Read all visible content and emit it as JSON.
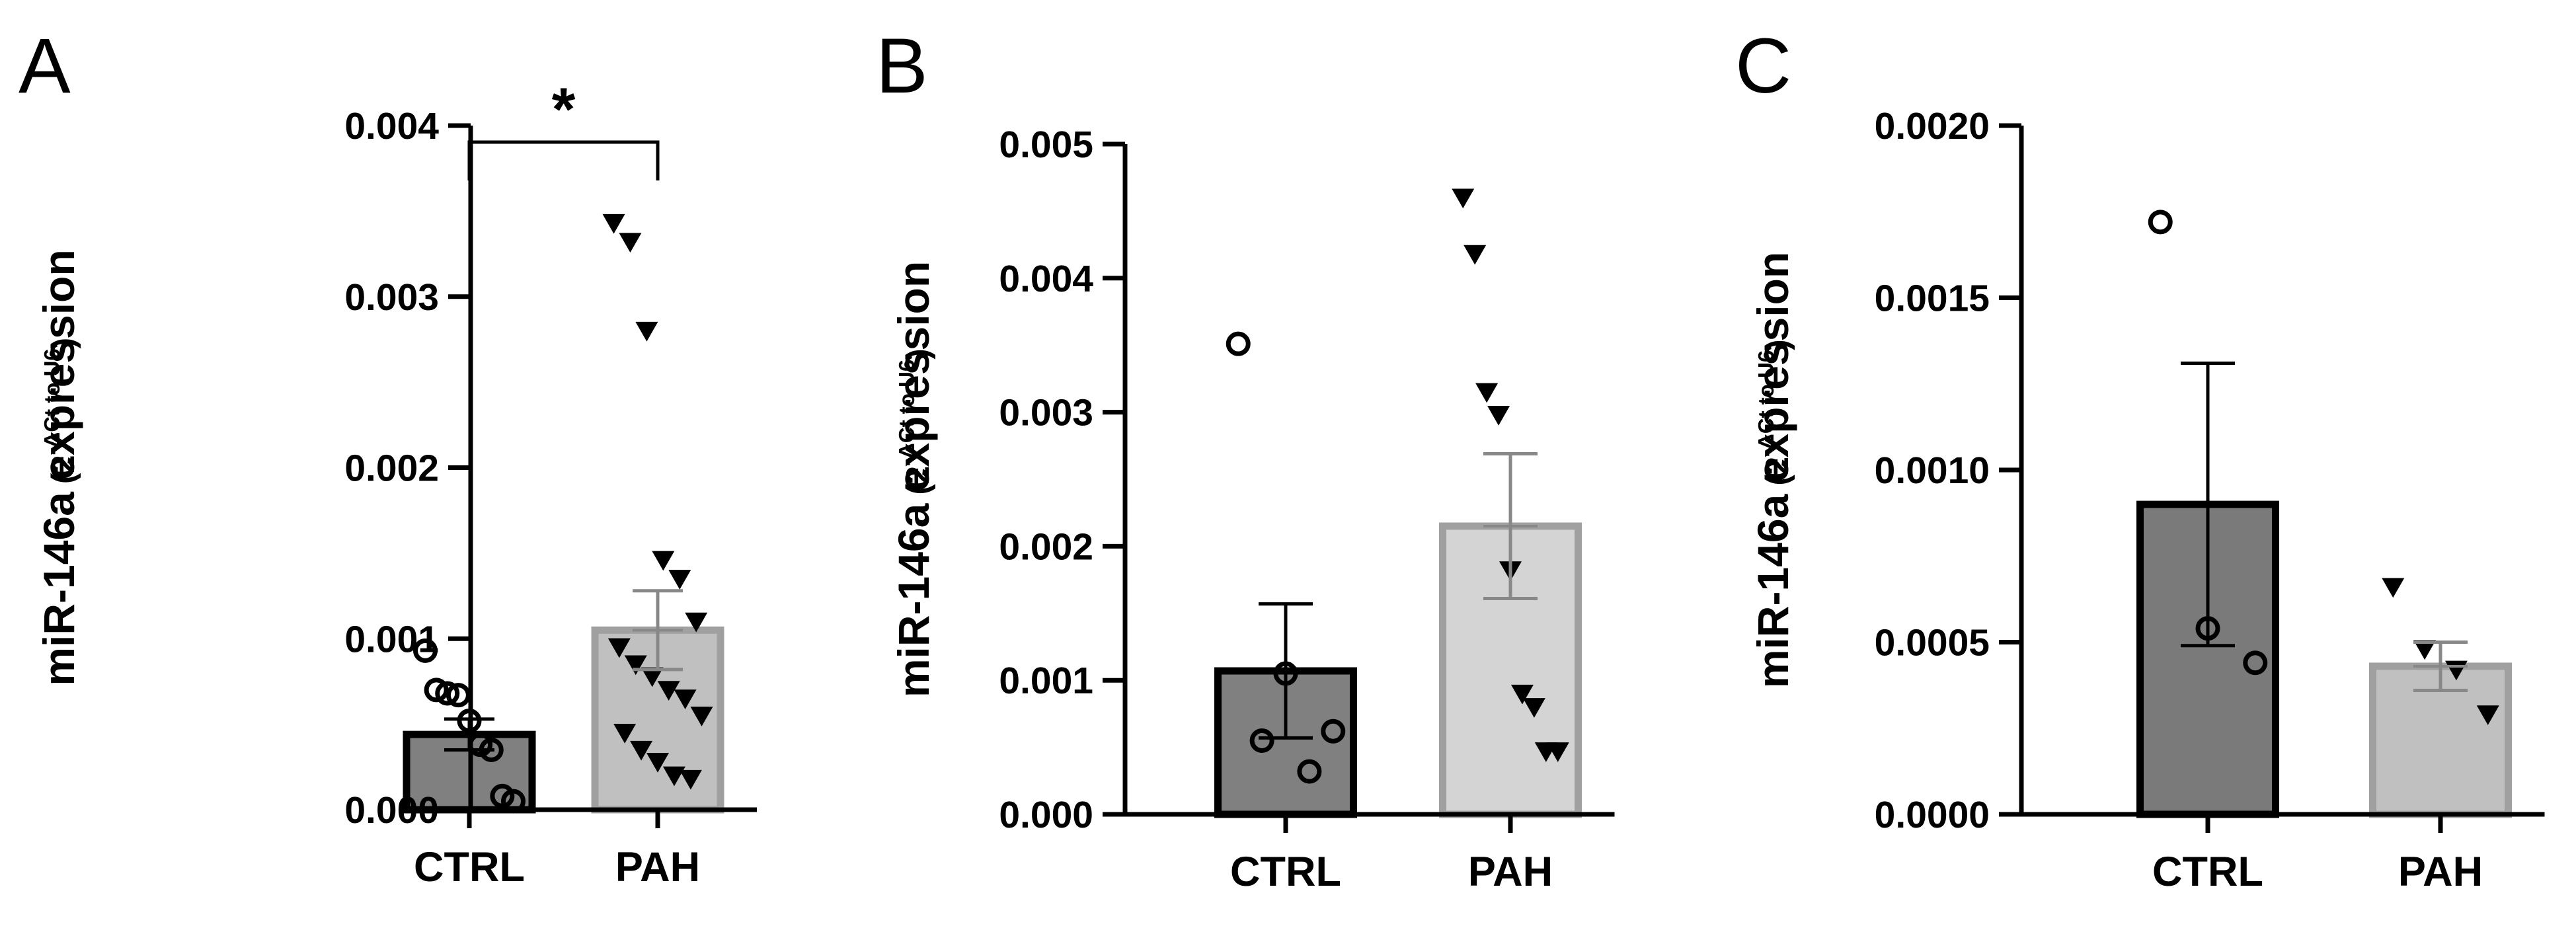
{
  "chart_data": [
    {
      "panel": "A",
      "type": "bar",
      "ylabel": "miR-146a expression",
      "ylabel_sub": {
        "base": "(2",
        "sup": "-ΔCt to U6",
        "close": ")"
      },
      "ylim": [
        0,
        0.004
      ],
      "yticks": [
        "0.000",
        "0.001",
        "0.002",
        "0.003",
        "0.004"
      ],
      "ytick_values": [
        0,
        0.001,
        0.002,
        0.003,
        0.004
      ],
      "categories": [
        "CTRL",
        "PAH"
      ],
      "bars": [
        {
          "name": "CTRL",
          "mean": 0.00044,
          "sem": 9e-05,
          "fill": "#808080",
          "stroke": "#000000",
          "marker": "open-circle",
          "points": [
            0.00093,
            0.0007,
            0.00068,
            0.00067,
            0.00052,
            0.00038,
            0.00035,
            8e-05,
            5e-05
          ]
        },
        {
          "name": "PAH",
          "mean": 0.00105,
          "sem": 0.00023,
          "fill": "#c0c0c0",
          "stroke": "#a0a0a0",
          "marker": "filled-triangle-down",
          "points": [
            0.00343,
            0.00332,
            0.0028,
            0.00146,
            0.00135,
            0.0011,
            0.00095,
            0.00085,
            0.00078,
            0.0007,
            0.00065,
            0.00055,
            0.00045,
            0.00035,
            0.00028,
            0.0002,
            0.00018
          ]
        }
      ],
      "significance": {
        "from": "CTRL",
        "to": "PAH",
        "label": "*",
        "y": 0.0039
      }
    },
    {
      "panel": "B",
      "type": "bar",
      "ylabel": "miR-146a expression",
      "ylabel_sub": {
        "base": "(2",
        "sup": "-ΔCt to U6",
        "close": ")"
      },
      "ylim": [
        0,
        0.005
      ],
      "yticks": [
        "0.000",
        "0.001",
        "0.002",
        "0.003",
        "0.004",
        "0.005"
      ],
      "ytick_values": [
        0,
        0.001,
        0.002,
        0.003,
        0.004,
        0.005
      ],
      "categories": [
        "CTRL",
        "PAH"
      ],
      "bars": [
        {
          "name": "CTRL",
          "mean": 0.00107,
          "sem": 0.0005,
          "fill": "#808080",
          "stroke": "#000000",
          "marker": "open-circle",
          "points": [
            0.00351,
            0.00105,
            0.00062,
            0.00055,
            0.00032
          ]
        },
        {
          "name": "PAH",
          "mean": 0.00215,
          "sem": 0.00054,
          "fill": "#d4d4d4",
          "stroke": "#a0a0a0",
          "marker": "filled-triangle-down",
          "points": [
            0.0046,
            0.00418,
            0.00315,
            0.00298,
            0.00182,
            0.0009,
            0.0008,
            0.00047,
            0.00047
          ]
        }
      ]
    },
    {
      "panel": "C",
      "type": "bar",
      "ylabel": "miR-146a expression",
      "ylabel_sub": {
        "base": "(2",
        "sup": "-ΔCt to U6",
        "close": ")"
      },
      "ylim": [
        0,
        0.002
      ],
      "yticks": [
        "0.0000",
        "0.0005",
        "0.0010",
        "0.0015",
        "0.0020"
      ],
      "ytick_values": [
        0,
        0.0005,
        0.001,
        0.0015,
        0.002
      ],
      "categories": [
        "CTRL",
        "PAH"
      ],
      "bars": [
        {
          "name": "CTRL",
          "mean": 0.0009,
          "sem": 0.00041,
          "fill": "#7a7a7a",
          "stroke": "#000000",
          "marker": "open-circle",
          "points": [
            0.00172,
            0.00054,
            0.00044
          ]
        },
        {
          "name": "PAH",
          "mean": 0.00043,
          "sem": 7e-05,
          "fill": "#c0c0c0",
          "stroke": "#a0a0a0",
          "marker": "filled-triangle-down",
          "points": [
            0.00066,
            0.00048,
            0.00042,
            0.00029
          ]
        }
      ]
    }
  ]
}
